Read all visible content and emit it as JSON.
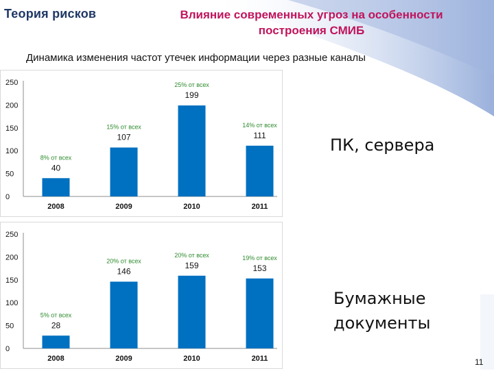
{
  "header": {
    "section_title": "Теория рисков",
    "slide_title_line1": "Влияние современных угроз на особенности",
    "slide_title_line2": "построения СМИБ",
    "subtitle": "Динамика изменения частот утечек информации через разные каналы"
  },
  "chart_data": [
    {
      "type": "bar",
      "categories": [
        "2008",
        "2009",
        "2010",
        "2011"
      ],
      "values": [
        40,
        107,
        199,
        111
      ],
      "data_labels": [
        "40",
        "107",
        "199",
        "111"
      ],
      "share_labels": [
        "8% от всех",
        "15% от всех",
        "25% от всех",
        "14% от всех"
      ],
      "yticks": [
        0,
        50,
        100,
        150,
        200,
        250
      ],
      "ylim": [
        0,
        250
      ],
      "grid": false,
      "bar_color": "#0070c0",
      "share_color": "#2e8b2e",
      "channel_label": "ПК, сервера"
    },
    {
      "type": "bar",
      "categories": [
        "2008",
        "2009",
        "2010",
        "2011"
      ],
      "values": [
        28,
        146,
        159,
        153
      ],
      "data_labels": [
        "28",
        "146",
        "159",
        "153"
      ],
      "share_labels": [
        "5% от всех",
        "20% от всех",
        "20% от всех",
        "19% от всех"
      ],
      "yticks": [
        0,
        50,
        100,
        150,
        200,
        250
      ],
      "ylim": [
        0,
        250
      ],
      "grid": false,
      "bar_color": "#0070c0",
      "share_color": "#2e8b2e",
      "channel_label_line1": "Бумажные",
      "channel_label_line2": "документы"
    }
  ],
  "footer": {
    "page_number": "11"
  }
}
